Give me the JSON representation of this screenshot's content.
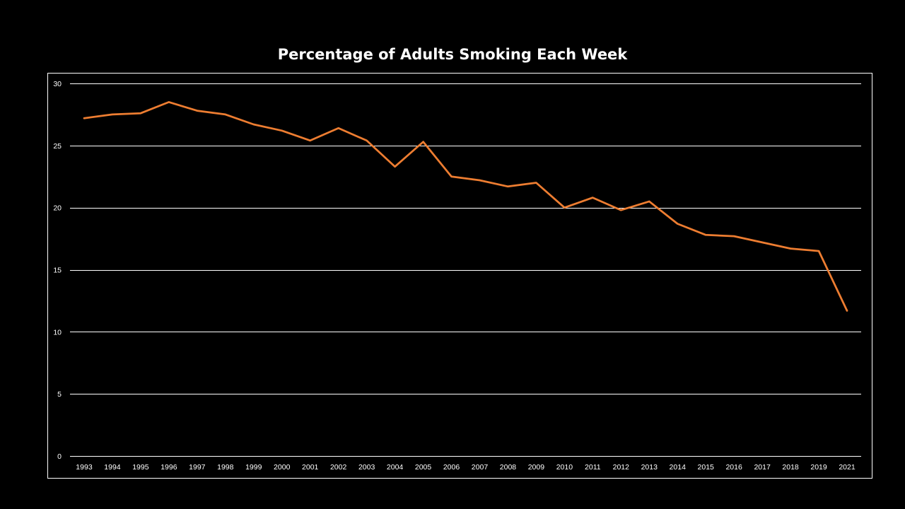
{
  "chart_data": {
    "type": "line",
    "title": "Percentage of Adults Smoking Each Week",
    "xlabel": "",
    "ylabel": "",
    "categories": [
      "1993",
      "1994",
      "1995",
      "1996",
      "1997",
      "1998",
      "1999",
      "2000",
      "2001",
      "2002",
      "2003",
      "2004",
      "2005",
      "2006",
      "2007",
      "2008",
      "2009",
      "2010",
      "2011",
      "2012",
      "2013",
      "2014",
      "2015",
      "2016",
      "2017",
      "2018",
      "2019",
      "2021"
    ],
    "series": [
      {
        "values": [
          27.2,
          27.5,
          27.6,
          28.5,
          27.8,
          27.5,
          26.7,
          26.2,
          25.4,
          26.4,
          25.4,
          23.3,
          25.3,
          22.5,
          22.2,
          21.7,
          22.0,
          20.0,
          20.8,
          19.8,
          20.5,
          18.7,
          17.8,
          17.7,
          17.2,
          16.7,
          16.5,
          11.7
        ],
        "color": "#ed7d31"
      }
    ],
    "ylim": [
      0,
      30
    ],
    "yticks": [
      0,
      5,
      10,
      15,
      20,
      25,
      30
    ],
    "grid": true,
    "legend": "none"
  },
  "colors": {
    "background": "#000000",
    "text": "#ffffff",
    "gridline": "#ffffff",
    "line": "#ed7d31"
  }
}
